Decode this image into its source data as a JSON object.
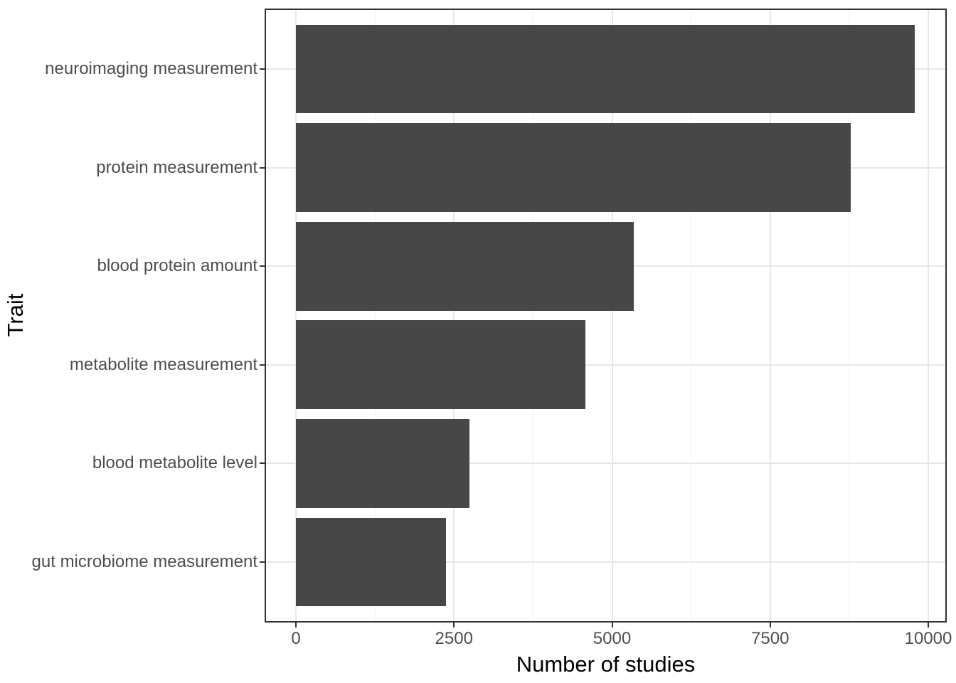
{
  "chart_data": {
    "type": "bar",
    "orientation": "horizontal",
    "title": "",
    "xlabel": "Number of studies",
    "ylabel": "Trait",
    "categories": [
      "neuroimaging measurement",
      "protein measurement",
      "blood protein amount",
      "metabolite measurement",
      "blood metabolite level",
      "gut microbiome measurement"
    ],
    "values": [
      9790,
      8770,
      5340,
      4580,
      2740,
      2370
    ],
    "x_major_ticks": [
      0,
      2500,
      5000,
      7500,
      10000
    ],
    "x_tick_labels": [
      "0",
      "2500",
      "5000",
      "7500",
      "10000"
    ],
    "x_minor_gridlines": [
      1250,
      3750,
      6250,
      8750
    ],
    "xlim": [
      0,
      10000
    ],
    "grid": "major-x, minor-x, major-y",
    "legend": "none",
    "colors": {
      "bar_fill": "#474747",
      "panel_border": "#333333",
      "gridline_major": "#e7e7e7",
      "gridline_minor": "#f1f1f1",
      "tick_mark": "#333333",
      "tick_label": "#4d4d4d",
      "axis_title": "#000000",
      "background": "#ffffff"
    }
  }
}
